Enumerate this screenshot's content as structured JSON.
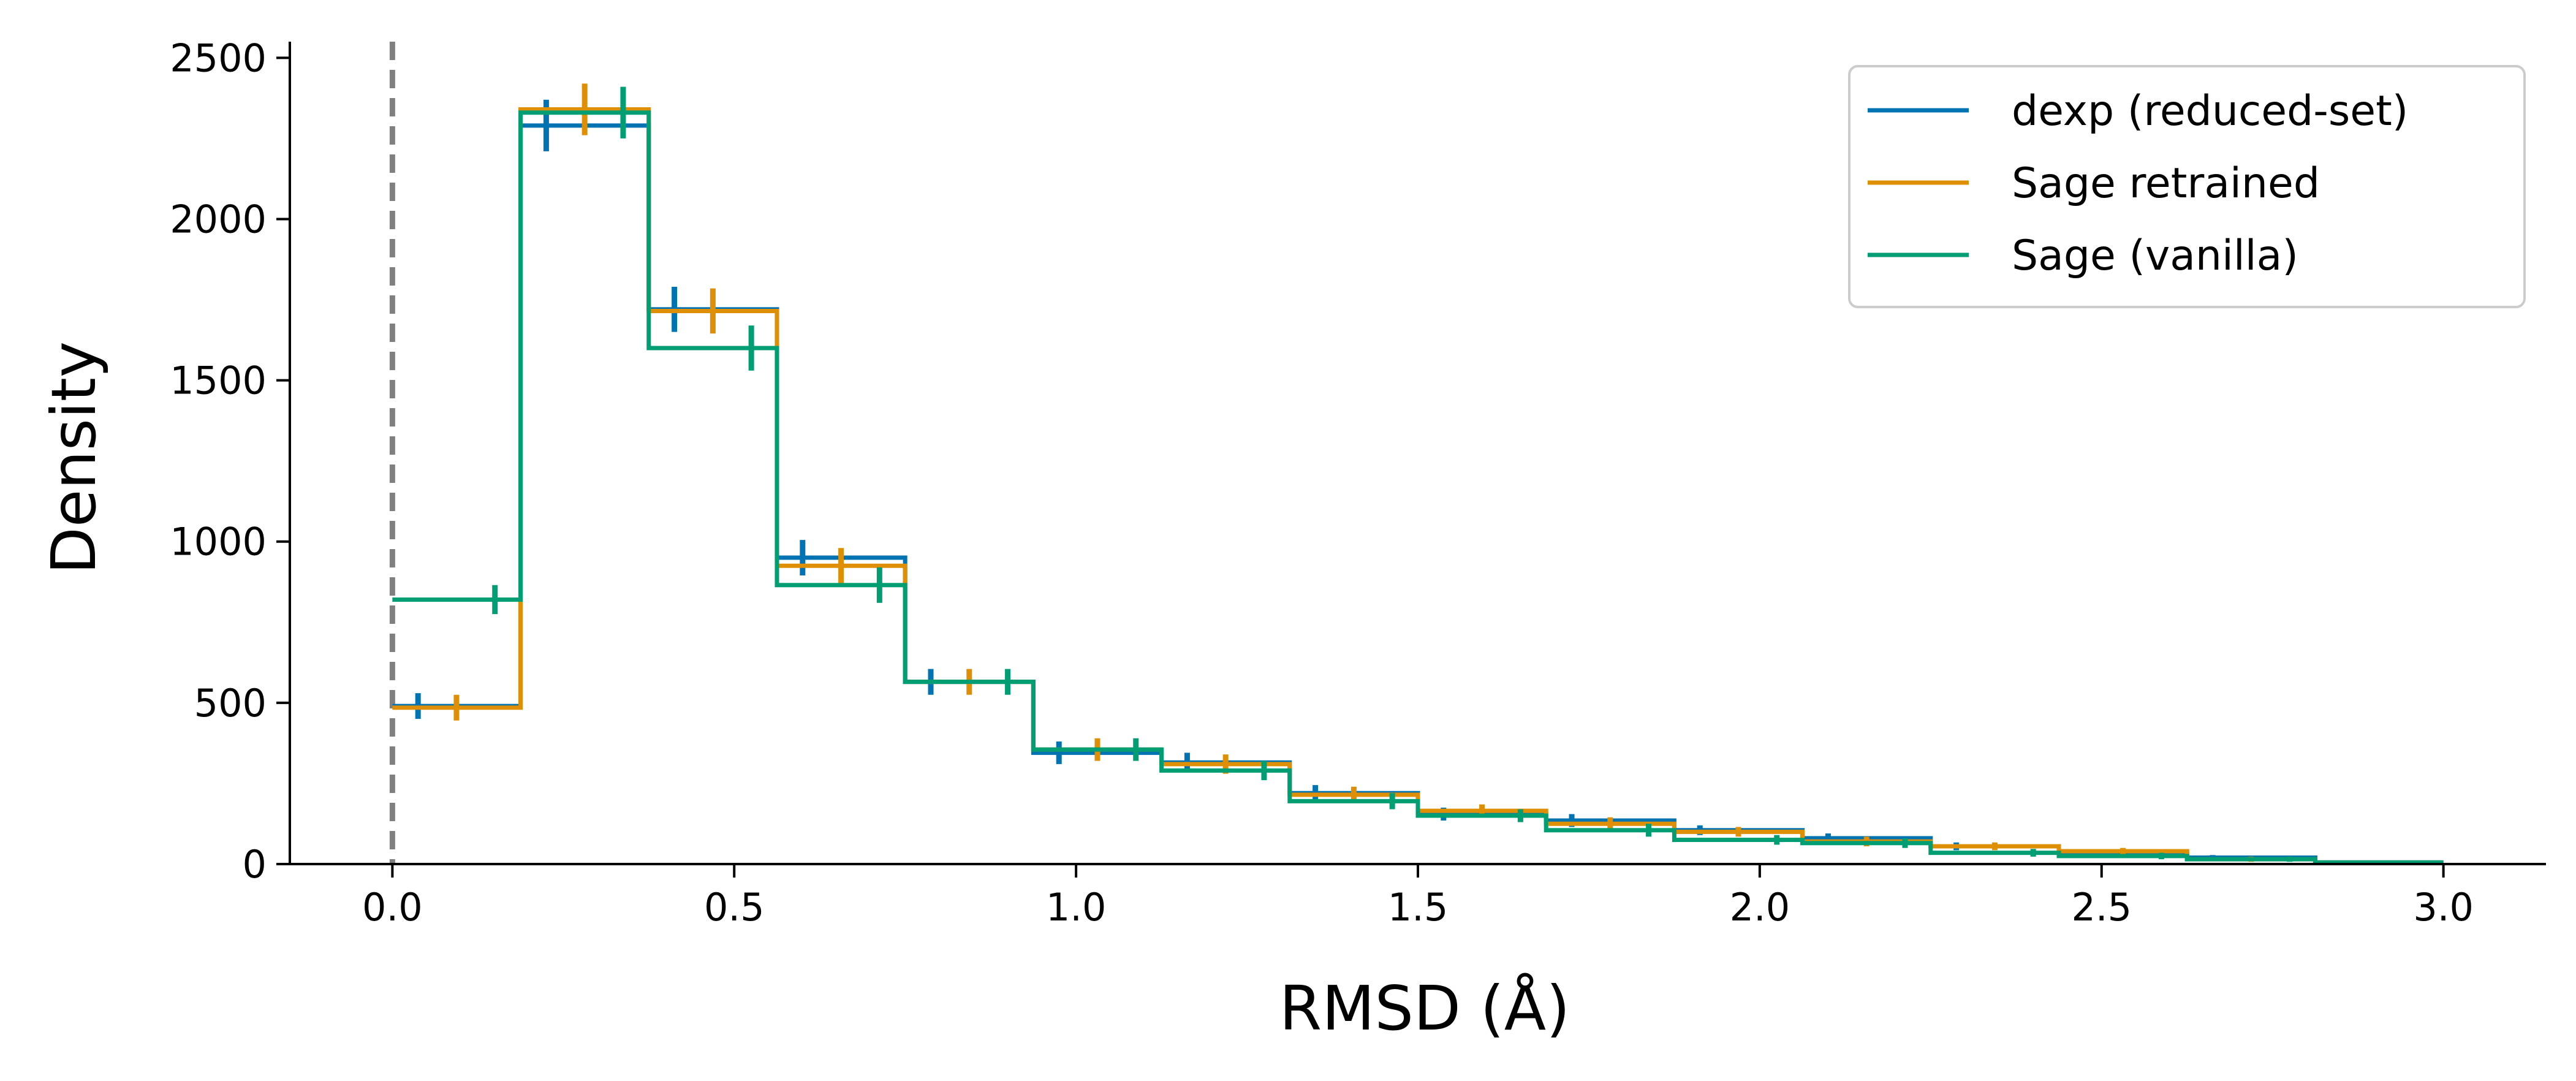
{
  "chart_data": {
    "type": "histogram-step",
    "xlabel": "RMSD (Å)",
    "ylabel": "Density",
    "xlim": [
      -0.15,
      3.15
    ],
    "ylim": [
      0,
      2550
    ],
    "x_ticks": [
      "0.0",
      "0.5",
      "1.0",
      "1.5",
      "2.0",
      "2.5",
      "3.0"
    ],
    "y_ticks": [
      "0",
      "500",
      "1000",
      "1500",
      "2000",
      "2500"
    ],
    "reference_line": {
      "x": 0.0,
      "style": "dashed",
      "color": "#808080"
    },
    "bin_edges": [
      0.0,
      0.1875,
      0.375,
      0.5625,
      0.75,
      0.9375,
      1.125,
      1.3125,
      1.5,
      1.6875,
      1.875,
      2.0625,
      2.25,
      2.4375,
      2.625,
      2.8125,
      3.0
    ],
    "legend": {
      "position": "top-right"
    },
    "series": [
      {
        "name": "dexp (reduced-set)",
        "color": "#0173b2",
        "values": [
          490,
          2290,
          1720,
          950,
          565,
          345,
          315,
          220,
          155,
          135,
          105,
          80,
          55,
          35,
          20,
          5
        ],
        "errors": [
          40,
          80,
          70,
          55,
          40,
          35,
          30,
          25,
          20,
          20,
          15,
          15,
          12,
          10,
          8,
          5
        ]
      },
      {
        "name": "Sage retrained",
        "color": "#de8f05",
        "values": [
          485,
          2340,
          1715,
          925,
          565,
          355,
          310,
          215,
          165,
          125,
          100,
          70,
          55,
          40,
          15,
          5
        ],
        "errors": [
          40,
          80,
          70,
          55,
          40,
          35,
          30,
          25,
          20,
          20,
          15,
          15,
          12,
          10,
          8,
          5
        ]
      },
      {
        "name": "Sage (vanilla)",
        "color": "#029e73",
        "values": [
          820,
          2330,
          1600,
          865,
          565,
          355,
          290,
          195,
          150,
          105,
          75,
          65,
          35,
          25,
          15,
          5
        ],
        "errors": [
          45,
          80,
          70,
          55,
          40,
          35,
          30,
          25,
          20,
          20,
          15,
          15,
          12,
          10,
          8,
          5
        ]
      }
    ]
  }
}
